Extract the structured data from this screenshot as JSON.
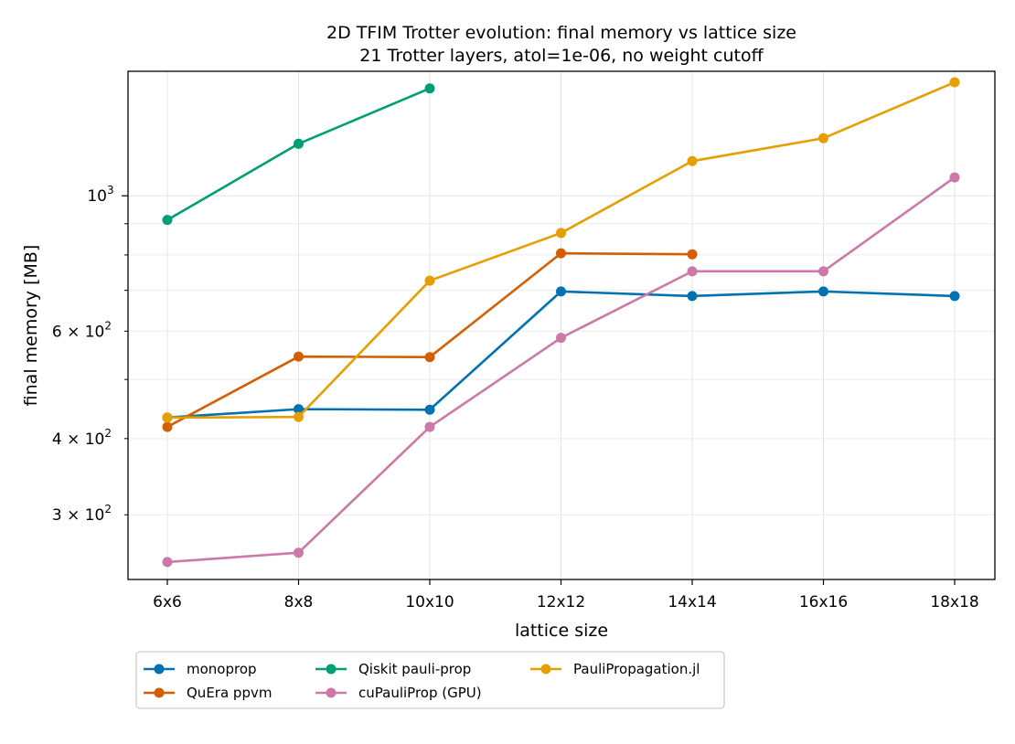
{
  "chart_data": {
    "type": "line",
    "title": "2D TFIM Trotter evolution: final memory vs lattice size",
    "subtitle": "21 Trotter layers, atol=1e-06, no weight cutoff",
    "xlabel": "lattice size",
    "ylabel": "final memory [MB]",
    "categories": [
      "6x6",
      "8x8",
      "10x10",
      "12x12",
      "14x14",
      "16x16",
      "18x18"
    ],
    "yscale": "log",
    "ylim": [
      235,
      1600
    ],
    "y_major_ticks": [
      {
        "value": 1000,
        "label_base": "10",
        "label_exp": "3"
      }
    ],
    "y_minor_ticks": [
      {
        "value": 300,
        "label": "3 × 10",
        "exp": "2"
      },
      {
        "value": 400,
        "label": "4 × 10",
        "exp": "2"
      },
      {
        "value": 500,
        "label": "",
        "exp": ""
      },
      {
        "value": 600,
        "label": "6 × 10",
        "exp": "2"
      },
      {
        "value": 700,
        "label": "",
        "exp": ""
      },
      {
        "value": 800,
        "label": "",
        "exp": ""
      },
      {
        "value": 900,
        "label": "",
        "exp": ""
      }
    ],
    "grid": true,
    "legend_position": "below",
    "series": [
      {
        "name": "monoprop",
        "color": "#0072b2",
        "values": [
          433,
          447,
          446,
          697,
          685,
          697,
          685
        ]
      },
      {
        "name": "QuEra ppvm",
        "color": "#d55e00",
        "values": [
          418,
          545,
          544,
          805,
          802,
          null,
          null
        ]
      },
      {
        "name": "Qiskit pauli-prop",
        "color": "#009e73",
        "values": [
          913,
          1217,
          1500,
          null,
          null,
          null,
          null
        ]
      },
      {
        "name": "cuPauliProp (GPU)",
        "color": "#cc79a7",
        "values": [
          251,
          260,
          418,
          585,
          752,
          752,
          1072
        ]
      },
      {
        "name": "PauliPropagation.jl",
        "color": "#e69f00",
        "values": [
          433,
          434,
          726,
          869,
          1140,
          1243,
          1535
        ]
      }
    ]
  }
}
